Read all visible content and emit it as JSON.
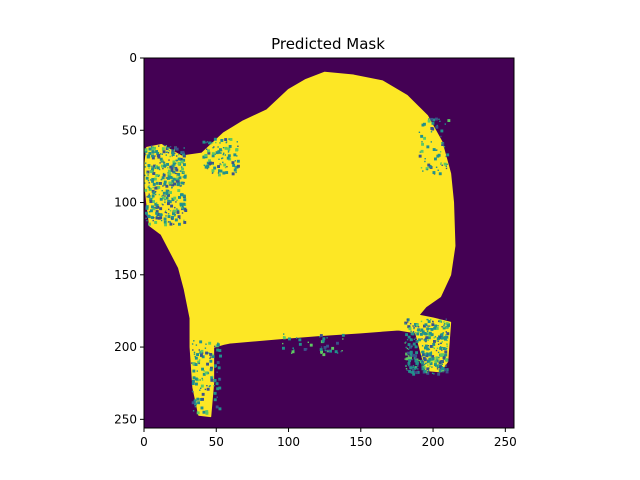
{
  "chart_data": {
    "type": "heatmap",
    "title": "Predicted Mask",
    "xlabel": "",
    "ylabel": "",
    "xlim": [
      0,
      256
    ],
    "ylim": [
      256,
      0
    ],
    "xticks": [
      0,
      50,
      100,
      150,
      200,
      250
    ],
    "yticks": [
      0,
      50,
      100,
      150,
      200,
      250
    ],
    "xtick_labels": [
      "0",
      "50",
      "100",
      "150",
      "200",
      "250"
    ],
    "ytick_labels": [
      "0",
      "50",
      "100",
      "150",
      "200",
      "250"
    ],
    "colormap": "viridis",
    "value_range": [
      0,
      1
    ],
    "background_value": 0,
    "grid": false,
    "mask_outline": [
      [
        125,
        10
      ],
      [
        145,
        12
      ],
      [
        165,
        16
      ],
      [
        182,
        26
      ],
      [
        196,
        40
      ],
      [
        206,
        58
      ],
      [
        212,
        80
      ],
      [
        214,
        100
      ],
      [
        215,
        130
      ],
      [
        212,
        150
      ],
      [
        205,
        165
      ],
      [
        195,
        172
      ],
      [
        190,
        178
      ],
      [
        200,
        180
      ],
      [
        212,
        183
      ],
      [
        210,
        210
      ],
      [
        205,
        217
      ],
      [
        195,
        216
      ],
      [
        188,
        190
      ],
      [
        176,
        188
      ],
      [
        150,
        190
      ],
      [
        120,
        192
      ],
      [
        95,
        194
      ],
      [
        60,
        197
      ],
      [
        55,
        198
      ],
      [
        48,
        200
      ],
      [
        48,
        225
      ],
      [
        46,
        248
      ],
      [
        38,
        247
      ],
      [
        34,
        228
      ],
      [
        32,
        200
      ],
      [
        32,
        180
      ],
      [
        28,
        160
      ],
      [
        24,
        145
      ],
      [
        12,
        122
      ],
      [
        4,
        116
      ],
      [
        2,
        100
      ],
      [
        0,
        80
      ],
      [
        2,
        62
      ],
      [
        12,
        60
      ],
      [
        26,
        68
      ],
      [
        40,
        66
      ],
      [
        55,
        52
      ],
      [
        68,
        44
      ],
      [
        85,
        36
      ],
      [
        100,
        22
      ],
      [
        112,
        15
      ]
    ],
    "noise_regions": [
      {
        "x": [
          0,
          28
        ],
        "y": [
          60,
          115
        ],
        "density": 0.45
      },
      {
        "x": [
          40,
          65
        ],
        "y": [
          55,
          80
        ],
        "density": 0.3
      },
      {
        "x": [
          180,
          210
        ],
        "y": [
          180,
          218
        ],
        "density": 0.5
      },
      {
        "x": [
          190,
          210
        ],
        "y": [
          40,
          80
        ],
        "density": 0.15
      },
      {
        "x": [
          32,
          52
        ],
        "y": [
          195,
          245
        ],
        "density": 0.2
      },
      {
        "x": [
          95,
          140
        ],
        "y": [
          190,
          205
        ],
        "density": 0.12
      }
    ],
    "colors": {
      "low": "#440154",
      "mid": "#21918c",
      "high": "#fde725"
    }
  }
}
